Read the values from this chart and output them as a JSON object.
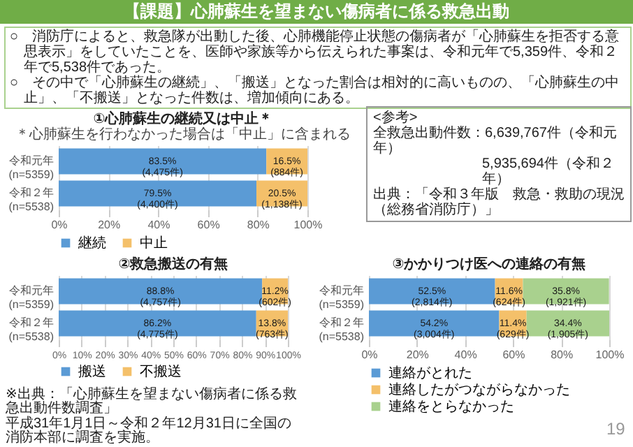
{
  "chart_data": [
    {
      "type": "other",
      "title": "【課題】心肺蘇生を望まない傷病者に係る救急出動",
      "annotations": [
        "○　消防庁によると、救急隊が出動した後、心肺機能停止状態の傷病者が「心肺蘇生を拒否する意思表示」をしていたことを、医師や家族等から伝えられた事案は、令和元年で5,359件、令和２年で5,538件であった。",
        "○　その中で「心肺蘇生の継続」、「搬送」となった割合は相対的に高いものの、「心肺蘇生の中止」、「不搬送」となった件数は、増加傾向にある。"
      ]
    },
    {
      "type": "bar",
      "orientation": "horizontal",
      "stacked": true,
      "title": "①心肺蘇生の継続又は中止＊",
      "subtitle": "＊心肺蘇生を行わなかった場合は「中止」に含まれる",
      "categories": [
        "令和元年\n(n=5359)",
        "令和２年\n(n=5538)"
      ],
      "series": [
        {
          "name": "継続",
          "color": "#5b9bd5",
          "values": [
            83.5,
            79.5
          ],
          "value_labels": [
            "83.5%\n(4,475件)",
            "79.5%\n(4,400件)"
          ]
        },
        {
          "name": "中止",
          "color": "#f4c06a",
          "values": [
            16.5,
            20.5
          ],
          "value_labels": [
            "16.5%\n(884件)",
            "20.5%\n(1,138件)"
          ]
        }
      ],
      "xlim": [
        0,
        100
      ],
      "xticks": [
        {
          "value": 0,
          "label": "0%"
        },
        {
          "value": 20,
          "label": "20%"
        },
        {
          "value": 40,
          "label": "40%"
        },
        {
          "value": 60,
          "label": "60%"
        },
        {
          "value": 80,
          "label": "80%"
        },
        {
          "value": 100,
          "label": "100%"
        }
      ],
      "grid": "x",
      "legend": "bottom"
    },
    {
      "type": "other",
      "title": "<参考>",
      "annotations": [
        "全救急出動件数：6,639,767件（令和元年）",
        "5,935,694件（令和２年）",
        "出典：「令和３年版　救急・救助の現況（総務省消防庁）」"
      ]
    },
    {
      "type": "bar",
      "orientation": "horizontal",
      "stacked": true,
      "title": "②救急搬送の有無",
      "categories": [
        "令和元年\n(n=5359)",
        "令和２年\n(n=5538)"
      ],
      "series": [
        {
          "name": "搬送",
          "color": "#5b9bd5",
          "values": [
            88.8,
            86.2
          ],
          "value_labels": [
            "88.8%\n(4,757件)",
            "86.2%\n(4,775件)"
          ]
        },
        {
          "name": "不搬送",
          "color": "#f4c06a",
          "values": [
            11.2,
            13.8
          ],
          "value_labels": [
            "11.2%\n(602件)",
            "13.8%\n(763件)"
          ]
        }
      ],
      "xlim": [
        0,
        100
      ],
      "xticks": [
        {
          "value": 0,
          "label": "0%"
        },
        {
          "value": 10,
          "label": "10%"
        },
        {
          "value": 20,
          "label": "20%"
        },
        {
          "value": 30,
          "label": "30%"
        },
        {
          "value": 40,
          "label": "40%"
        },
        {
          "value": 50,
          "label": "50%"
        },
        {
          "value": 60,
          "label": "60%"
        },
        {
          "value": 70,
          "label": "70%"
        },
        {
          "value": 80,
          "label": "80%"
        },
        {
          "value": 90,
          "label": "90%"
        },
        {
          "value": 100,
          "label": "100%"
        }
      ],
      "grid": "x",
      "legend": "bottom"
    },
    {
      "type": "bar",
      "orientation": "horizontal",
      "stacked": true,
      "title": "③かかりつけ医への連絡の有無",
      "categories": [
        "令和元年\n(n=5359)",
        "令和２年\n(n=5538)"
      ],
      "series": [
        {
          "name": "連絡がとれた",
          "color": "#5b9bd5",
          "values": [
            52.5,
            54.2
          ],
          "value_labels": [
            "52.5%\n(2,814件)",
            "54.2%\n(3,004件)"
          ]
        },
        {
          "name": "連絡したがつながらなかった",
          "color": "#f4c06a",
          "values": [
            11.6,
            11.4
          ],
          "value_labels": [
            "11.6%\n(624件)",
            "11.4%\n(629件)"
          ]
        },
        {
          "name": "連絡をとらなかった",
          "color": "#a9d18e",
          "values": [
            35.8,
            34.4
          ],
          "value_labels": [
            "35.8%\n(1,921件)",
            "34.4%\n(1,905件)"
          ]
        }
      ],
      "xlim": [
        0,
        100
      ],
      "xticks": [
        {
          "value": 0,
          "label": "0%"
        },
        {
          "value": 20,
          "label": "20%"
        },
        {
          "value": 40,
          "label": "40%"
        },
        {
          "value": 60,
          "label": "60%"
        },
        {
          "value": 80,
          "label": "80%"
        },
        {
          "value": 100,
          "label": "100%"
        }
      ],
      "grid": "x",
      "legend": "bottom"
    },
    {
      "type": "other",
      "annotations": [
        "※出典：「心肺蘇生を望まない傷病者に係る救急出動件数調査」",
        "平成31年1月1日～令和２年12月31日に全国の消防本部に調査を実施。",
        "19"
      ]
    }
  ]
}
